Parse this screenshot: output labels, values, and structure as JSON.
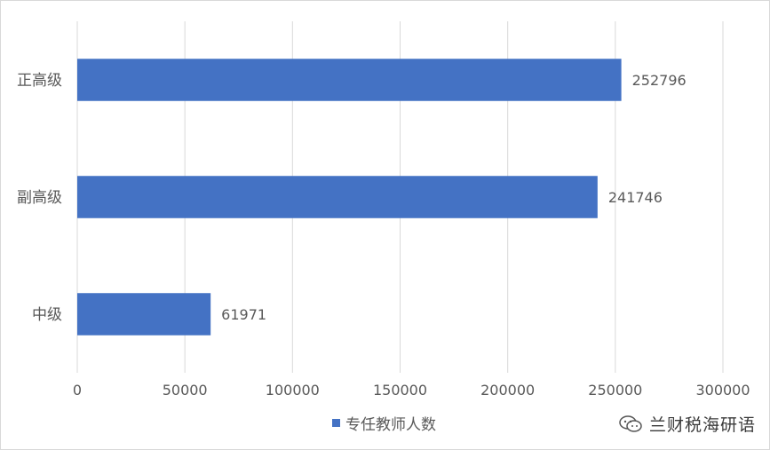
{
  "chart_data": {
    "type": "bar",
    "orientation": "horizontal",
    "categories": [
      "正高级",
      "副高级",
      "中级"
    ],
    "series": [
      {
        "name": "专任教师人数",
        "values": [
          252796,
          241746,
          61971
        ]
      }
    ],
    "data_labels": [
      "252796",
      "241746",
      "61971"
    ],
    "x_ticks": [
      "0",
      "50000",
      "100000",
      "150000",
      "200000",
      "250000",
      "300000"
    ],
    "xlim": [
      0,
      300000
    ],
    "grid": "vertical",
    "legend_position": "bottom",
    "bar_color": "#4472c4",
    "grid_color": "#d9d9d9",
    "axis_text_color": "#595959"
  },
  "legend": {
    "label": "专任教师人数"
  },
  "watermark": {
    "icon": "wechat-icon",
    "text": "兰财税海研语"
  }
}
